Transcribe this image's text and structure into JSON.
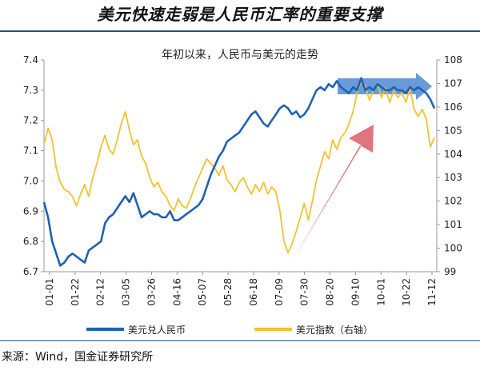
{
  "header": {
    "title": "美元快速走弱是人民币汇率的重要支撑"
  },
  "footer": {
    "source": "来源：Wind，国金证券研究所"
  },
  "colors": {
    "usdcny": "#1f62b0",
    "dxy": "#f2c230",
    "rule": "#2b4f86",
    "arrow_up": "#d9535f",
    "arrow_right": "#4e8ad1"
  },
  "chart_data": {
    "type": "line",
    "title": "年初以来，人民币与美元的走势",
    "x_tick_labels": [
      "01-01",
      "01-22",
      "02-12",
      "03-05",
      "03-26",
      "04-16",
      "05-07",
      "05-28",
      "06-18",
      "07-09",
      "07-30",
      "08-20",
      "09-10",
      "10-01",
      "10-22",
      "11-12"
    ],
    "y_left": {
      "min": 6.7,
      "max": 7.4,
      "ticks": [
        "6.7",
        "6.8",
        "6.9",
        "7.0",
        "7.1",
        "7.2",
        "7.3",
        "7.4"
      ]
    },
    "y_right": {
      "min": 99,
      "max": 108,
      "ticks": [
        "99",
        "100",
        "101",
        "102",
        "103",
        "104",
        "105",
        "106",
        "107",
        "108"
      ]
    },
    "legend_position": "bottom",
    "grid": false,
    "series": [
      {
        "name": "美元兑人民币",
        "axis": "left",
        "values": [
          6.93,
          6.88,
          6.8,
          6.76,
          6.72,
          6.73,
          6.75,
          6.76,
          6.75,
          6.74,
          6.73,
          6.77,
          6.78,
          6.79,
          6.8,
          6.86,
          6.88,
          6.89,
          6.91,
          6.93,
          6.95,
          6.93,
          6.96,
          6.92,
          6.88,
          6.89,
          6.9,
          6.89,
          6.89,
          6.88,
          6.88,
          6.9,
          6.87,
          6.87,
          6.88,
          6.89,
          6.9,
          6.91,
          6.92,
          6.94,
          6.98,
          7.02,
          7.05,
          7.08,
          7.1,
          7.13,
          7.14,
          7.15,
          7.16,
          7.18,
          7.2,
          7.22,
          7.23,
          7.21,
          7.19,
          7.18,
          7.2,
          7.22,
          7.24,
          7.25,
          7.24,
          7.22,
          7.23,
          7.21,
          7.22,
          7.24,
          7.27,
          7.3,
          7.31,
          7.3,
          7.32,
          7.31,
          7.33,
          7.31,
          7.3,
          7.29,
          7.31,
          7.3,
          7.34,
          7.3,
          7.31,
          7.3,
          7.32,
          7.31,
          7.3,
          7.3,
          7.31,
          7.3,
          7.3,
          7.29,
          7.31,
          7.3,
          7.31,
          7.3,
          7.29,
          7.27,
          7.24
        ]
      },
      {
        "name": "美元指数（右轴）",
        "axis": "right",
        "values": [
          104.4,
          105.1,
          104.6,
          103.4,
          102.8,
          102.5,
          102.4,
          102.2,
          101.8,
          102.3,
          102.7,
          102.2,
          103.0,
          103.6,
          104.3,
          104.8,
          104.2,
          104.0,
          104.6,
          105.3,
          105.8,
          105.0,
          104.4,
          104.6,
          103.9,
          103.6,
          103.0,
          102.6,
          102.8,
          102.4,
          102.2,
          101.8,
          101.6,
          102.1,
          101.8,
          101.7,
          102.1,
          102.6,
          103.0,
          103.4,
          103.8,
          103.6,
          103.4,
          103.1,
          103.5,
          102.9,
          102.7,
          102.4,
          102.8,
          103.0,
          102.6,
          102.3,
          102.7,
          102.4,
          102.8,
          102.3,
          102.6,
          102.4,
          101.6,
          100.3,
          99.8,
          100.2,
          100.7,
          101.3,
          101.9,
          101.2,
          102.0,
          102.9,
          103.5,
          104.1,
          103.8,
          104.6,
          104.2,
          104.7,
          104.9,
          105.3,
          105.8,
          106.6,
          107.1,
          106.9,
          106.3,
          106.7,
          107.0,
          106.4,
          106.8,
          106.2,
          106.7,
          106.4,
          106.6,
          106.2,
          106.8,
          105.9,
          105.6,
          105.9,
          105.5,
          104.3,
          104.7
        ]
      }
    ]
  }
}
